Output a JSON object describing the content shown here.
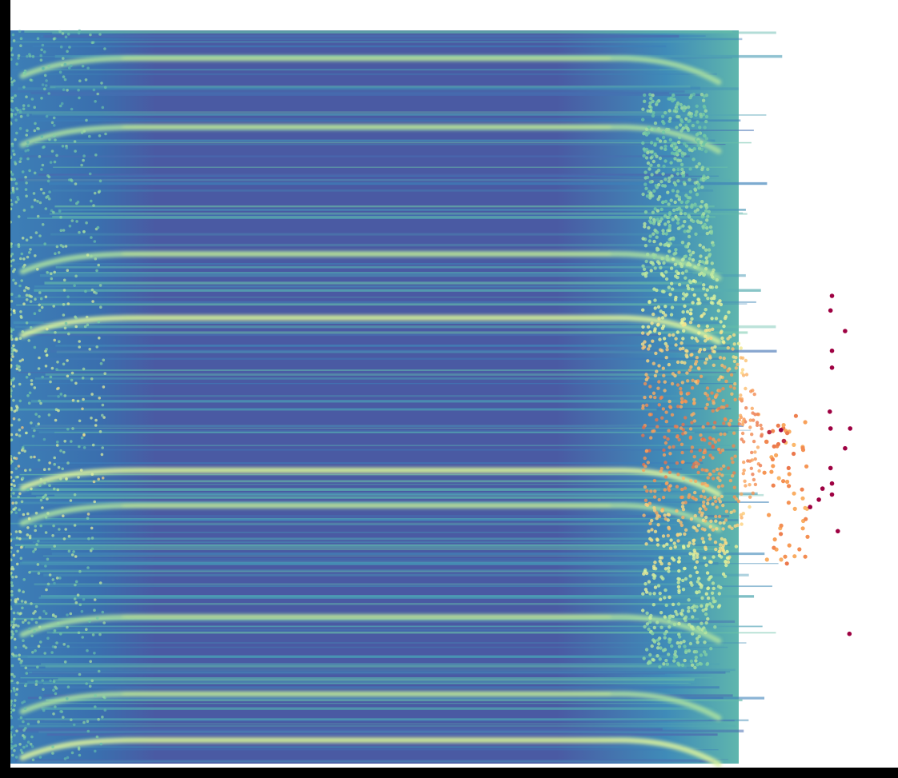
{
  "chart_data": {
    "type": "scatter",
    "title": "",
    "xlabel": "",
    "ylabel": "",
    "grid": false,
    "legend": "none",
    "colormap": "Spectral_r",
    "colormap_stops": [
      "#5e4fa2",
      "#3c7fb9",
      "#4fa3b4",
      "#70c8a5",
      "#b8e6a0",
      "#eaf79c",
      "#fdd47f",
      "#f89a55",
      "#e05a45",
      "#9e0142"
    ],
    "band_color": "#c6e98f",
    "frame_color": "#000000",
    "background": "#ffffff",
    "bands_note_values": [
      0.038,
      0.132,
      0.305,
      0.392,
      0.6,
      0.648,
      0.8,
      0.905,
      0.968
    ],
    "outliers": [
      {
        "x": 1.128,
        "y": 0.362,
        "v": 1.0
      },
      {
        "x": 1.126,
        "y": 0.382,
        "v": 1.0
      },
      {
        "x": 1.146,
        "y": 0.41,
        "v": 1.0
      },
      {
        "x": 1.128,
        "y": 0.437,
        "v": 1.0
      },
      {
        "x": 1.128,
        "y": 0.46,
        "v": 1.0
      },
      {
        "x": 1.125,
        "y": 0.52,
        "v": 1.0
      },
      {
        "x": 1.126,
        "y": 0.543,
        "v": 1.0
      },
      {
        "x": 1.153,
        "y": 0.543,
        "v": 1.0
      },
      {
        "x": 1.146,
        "y": 0.57,
        "v": 1.0
      },
      {
        "x": 1.126,
        "y": 0.597,
        "v": 1.0
      },
      {
        "x": 1.128,
        "y": 0.618,
        "v": 1.0
      },
      {
        "x": 1.115,
        "y": 0.625,
        "v": 1.0
      },
      {
        "x": 1.128,
        "y": 0.633,
        "v": 1.0
      },
      {
        "x": 1.11,
        "y": 0.64,
        "v": 1.0
      },
      {
        "x": 1.098,
        "y": 0.65,
        "v": 1.0
      },
      {
        "x": 1.136,
        "y": 0.683,
        "v": 1.0
      },
      {
        "x": 1.152,
        "y": 0.823,
        "v": 1.0
      },
      {
        "x": 1.058,
        "y": 0.545,
        "v": 1.0
      },
      {
        "x": 1.062,
        "y": 0.56,
        "v": 0.95
      },
      {
        "x": 1.042,
        "y": 0.548,
        "v": 0.95
      }
    ]
  }
}
